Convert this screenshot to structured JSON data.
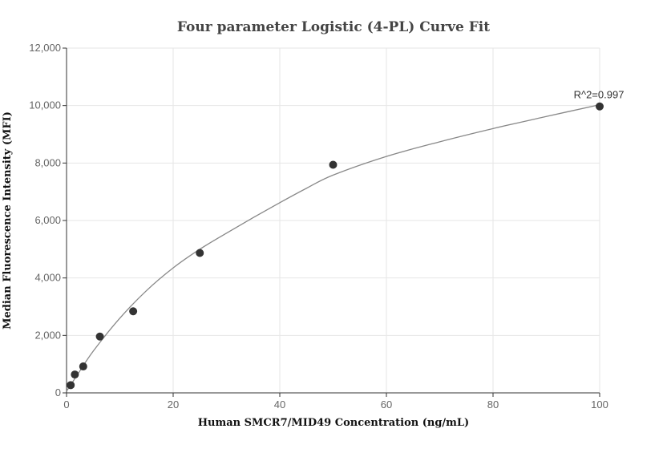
{
  "chart_data": {
    "type": "scatter",
    "title": "Four parameter Logistic (4-PL) Curve Fit",
    "xlabel": "Human SMCR7/MID49 Concentration (ng/mL)",
    "ylabel": "Median Fluorescence Intensity (MFI)",
    "xlim": [
      0,
      100
    ],
    "ylim": [
      0,
      12000
    ],
    "x_ticks": [
      0,
      20,
      40,
      60,
      80,
      100
    ],
    "y_ticks": [
      0,
      2000,
      4000,
      6000,
      8000,
      10000,
      12000
    ],
    "x_tick_labels": [
      "0",
      "20",
      "40",
      "60",
      "80",
      "100"
    ],
    "y_tick_labels": [
      "0",
      "2,000",
      "4,000",
      "6,000",
      "8,000",
      "10,000",
      "12,000"
    ],
    "grid": true,
    "series": [
      {
        "points": [
          {
            "x": 0.78,
            "y": 270
          },
          {
            "x": 1.56,
            "y": 640
          },
          {
            "x": 3.13,
            "y": 920
          },
          {
            "x": 6.25,
            "y": 1960
          },
          {
            "x": 12.5,
            "y": 2840
          },
          {
            "x": 25,
            "y": 4870
          },
          {
            "x": 50,
            "y": 7940
          },
          {
            "x": 100,
            "y": 9970
          }
        ]
      }
    ],
    "fit_curve": {
      "points": [
        {
          "x": 0,
          "y": 60
        },
        {
          "x": 2,
          "y": 620
        },
        {
          "x": 5,
          "y": 1450
        },
        {
          "x": 10,
          "y": 2600
        },
        {
          "x": 15,
          "y": 3560
        },
        {
          "x": 20,
          "y": 4350
        },
        {
          "x": 25,
          "y": 5000
        },
        {
          "x": 30,
          "y": 5560
        },
        {
          "x": 35,
          "y": 6100
        },
        {
          "x": 40,
          "y": 6620
        },
        {
          "x": 45,
          "y": 7120
        },
        {
          "x": 50,
          "y": 7580
        },
        {
          "x": 60,
          "y": 8230
        },
        {
          "x": 70,
          "y": 8740
        },
        {
          "x": 80,
          "y": 9200
        },
        {
          "x": 90,
          "y": 9620
        },
        {
          "x": 100,
          "y": 10030
        }
      ]
    },
    "annotation": {
      "text": "R^2=0.997",
      "x": 100,
      "y": 10030
    }
  }
}
